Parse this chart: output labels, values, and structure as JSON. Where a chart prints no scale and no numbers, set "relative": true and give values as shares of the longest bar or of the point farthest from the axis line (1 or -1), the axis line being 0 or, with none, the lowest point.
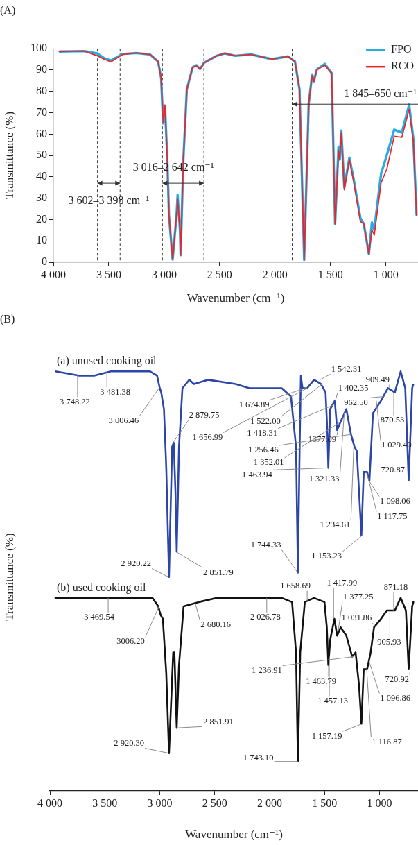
{
  "chart_data": [
    {
      "type": "line",
      "title": "(A)",
      "xlabel": "Wavenumber (cm⁻¹)",
      "ylabel": "Transmittance (%)",
      "xlim": [
        4000,
        710
      ],
      "xticks": [
        {
          "value": 4000,
          "label": "4 000"
        },
        {
          "value": 3500,
          "label": "3 500"
        },
        {
          "value": 3000,
          "label": "3 000"
        },
        {
          "value": 2500,
          "label": "2 500"
        },
        {
          "value": 2000,
          "label": "2 000"
        },
        {
          "value": 1500,
          "label": "1 500"
        },
        {
          "value": 1000,
          "label": "1 000"
        }
      ],
      "ylim": [
        0,
        100
      ],
      "yticks": [
        0,
        10,
        20,
        30,
        40,
        50,
        60,
        70,
        80,
        90,
        100
      ],
      "grid": false,
      "legend": "top right",
      "x": [
        3948,
        3720,
        3605,
        3543,
        3481,
        3377,
        3252,
        3128,
        3055,
        3028,
        3009,
        2993,
        2972,
        2957,
        2924,
        2889,
        2879,
        2858,
        2852,
        2827,
        2796,
        2744,
        2709,
        2677,
        2640,
        2525,
        2453,
        2359,
        2215,
        2028,
        1883,
        1820,
        1779,
        1737,
        1696,
        1665,
        1650,
        1623,
        1551,
        1489,
        1458,
        1427,
        1416,
        1402,
        1375,
        1329,
        1292,
        1230,
        1199,
        1153,
        1126,
        1105,
        1043,
        991,
        925,
        856,
        790,
        752,
        723
      ],
      "series": [
        {
          "name": "FPO",
          "color": "#29abe2",
          "values": [
            98.7,
            98.9,
            97.8,
            95.6,
            94.5,
            97.5,
            98.0,
            97.3,
            94.0,
            86.3,
            65.0,
            73.4,
            48.1,
            21.9,
            1.3,
            21.9,
            31.5,
            15.3,
            3.3,
            48.1,
            80.9,
            91.3,
            92.3,
            90.5,
            93.4,
            96.7,
            97.8,
            96.7,
            97.3,
            95.1,
            96.4,
            94.0,
            80.9,
            1.1,
            74.3,
            88.0,
            84.7,
            90.2,
            92.9,
            88.5,
            18.0,
            54.1,
            48.1,
            61.7,
            35.0,
            49.0,
            39.3,
            20.8,
            18.0,
            3.8,
            18.6,
            15.3,
            41.5,
            50.3,
            62.1,
            60.7,
            73.8,
            57.9,
            21.9
          ]
        },
        {
          "name": "RCO",
          "color": "#e8262b",
          "values": [
            98.7,
            98.9,
            96.7,
            95.1,
            93.8,
            97.3,
            98.0,
            97.3,
            94.0,
            86.3,
            65.6,
            73.2,
            48.1,
            21.9,
            1.3,
            21.9,
            29.5,
            15.3,
            3.3,
            48.1,
            80.9,
            91.3,
            92.0,
            90.5,
            93.4,
            96.7,
            97.8,
            96.7,
            97.3,
            95.1,
            96.4,
            94.0,
            80.9,
            1.1,
            74.3,
            87.4,
            84.7,
            90.2,
            92.3,
            88.5,
            18.0,
            52.5,
            48.1,
            60.7,
            33.9,
            48.1,
            38.3,
            19.1,
            18.0,
            3.8,
            15.3,
            12.6,
            37.2,
            43.7,
            59.0,
            58.5,
            71.6,
            56.8,
            21.9
          ]
        }
      ],
      "ref_lines": [
        {
          "axis": "x",
          "value": 3602,
          "color": "#333333",
          "line_style": "dashed"
        },
        {
          "axis": "x",
          "value": 3398,
          "color": "#333333",
          "line_style": "dashed"
        },
        {
          "axis": "x",
          "value": 3016,
          "color": "#333333",
          "line_style": "dashed"
        },
        {
          "axis": "x",
          "value": 2642,
          "color": "#333333",
          "line_style": "dashed"
        },
        {
          "axis": "x",
          "value": 1845,
          "color": "#333333",
          "line_style": "dashed"
        }
      ],
      "annotations": [
        "3 602–3 398 cm⁻¹",
        "3 016–2 642 cm⁻¹",
        {
          "text": "1 845–650 cm⁻¹",
          "x": 1845,
          "y": 74
        }
      ]
    },
    {
      "type": "line",
      "title": "(B)",
      "xlabel": "Wavenumber (cm⁻¹)",
      "ylabel": "Transmittance (%)",
      "relative": true,
      "tick_labels": "x",
      "xlim": [
        4000,
        650
      ],
      "xticks": [
        {
          "value": 4000,
          "label": "4 000"
        },
        {
          "value": 3500,
          "label": "3 500"
        },
        {
          "value": 3000,
          "label": "3 000"
        },
        {
          "value": 2500,
          "label": "2 500"
        },
        {
          "value": 2000,
          "label": "2 000"
        },
        {
          "value": 1500,
          "label": "1 500"
        },
        {
          "value": 1000,
          "label": "1 000"
        }
      ],
      "grid": false,
      "legend": false,
      "series": [
        {
          "name": "(a) unused cooking oil",
          "color": "#2b45a8",
          "x": [
            3950,
            3739,
            3592,
            3445,
            3235,
            3088,
            3025,
            3000,
            2987,
            2962,
            2941,
            2916,
            2888,
            2873,
            2857,
            2846,
            2825,
            2794,
            2731,
            2689,
            2562,
            2310,
            2184,
            1890,
            1806,
            1760,
            1743,
            1727,
            1716,
            1701,
            1659,
            1596,
            1533,
            1491,
            1474,
            1466,
            1449,
            1407,
            1386,
            1354,
            1302,
            1260,
            1228,
            1207,
            1165,
            1144,
            1113,
            1092,
            1060,
            987,
            924,
            861,
            808,
            766,
            735,
            703,
            692
          ],
          "values": [
            1.0,
            0.99,
            0.99,
            1.0,
            1.0,
            1.0,
            0.99,
            0.96,
            0.95,
            0.91,
            0.77,
            0.51,
            0.82,
            0.83,
            0.71,
            0.57,
            0.82,
            0.96,
            0.98,
            0.97,
            0.98,
            0.97,
            0.96,
            0.96,
            0.94,
            0.82,
            0.52,
            0.82,
            0.99,
            0.96,
            0.96,
            0.98,
            0.97,
            0.95,
            0.85,
            0.77,
            0.91,
            0.93,
            0.86,
            0.88,
            0.91,
            0.85,
            0.82,
            0.81,
            0.61,
            0.76,
            0.76,
            0.74,
            0.9,
            0.93,
            0.96,
            0.95,
            1.0,
            0.96,
            0.74,
            0.96,
            0.97
          ]
        },
        {
          "name": "(b) used cooking oil",
          "color": "#111111",
          "x": [
            3950,
            3466,
            3067,
            3014,
            2993,
            2972,
            2941,
            2916,
            2878,
            2867,
            2846,
            2825,
            2783,
            2646,
            2478,
            2184,
            1890,
            1796,
            1760,
            1743,
            1722,
            1680,
            1596,
            1501,
            1480,
            1466,
            1449,
            1411,
            1386,
            1354,
            1302,
            1249,
            1218,
            1186,
            1165,
            1144,
            1113,
            1081,
            1050,
            987,
            934,
            861,
            808,
            760,
            735,
            703,
            692
          ],
          "values": [
            0.46,
            0.46,
            0.46,
            0.44,
            0.42,
            0.41,
            0.28,
            0.09,
            0.33,
            0.33,
            0.15,
            0.3,
            0.44,
            0.45,
            0.46,
            0.46,
            0.46,
            0.45,
            0.33,
            0.07,
            0.33,
            0.45,
            0.46,
            0.45,
            0.39,
            0.3,
            0.36,
            0.41,
            0.37,
            0.39,
            0.37,
            0.32,
            0.33,
            0.25,
            0.16,
            0.29,
            0.29,
            0.33,
            0.39,
            0.41,
            0.43,
            0.43,
            0.46,
            0.43,
            0.29,
            0.44,
            0.45
          ]
        }
      ],
      "annotations": [
        {
          "text": "3 748.22",
          "x": 3748.22,
          "y": 0.99
        },
        {
          "text": "3 481.38",
          "x": 3481.38,
          "y": 1.0
        },
        {
          "text": "3 006.46",
          "x": 3006.46,
          "y": 0.96
        },
        {
          "text": "2 879.75",
          "x": 2879.75,
          "y": 0.83
        },
        {
          "text": "2 920.22",
          "x": 2920.22,
          "y": 0.51
        },
        {
          "text": "2 851.79",
          "x": 2851.79,
          "y": 0.57
        },
        {
          "text": "1 674.89",
          "x": 1674.89,
          "y": 0.96
        },
        {
          "text": "1 656.99",
          "x": 1656.99,
          "y": 0.96
        },
        {
          "text": "1 542.31",
          "x": 1542.31,
          "y": 0.98
        },
        {
          "text": "1 522.00",
          "x": 1522.0,
          "y": 0.97
        },
        {
          "text": "1 418.31",
          "x": 1418.31,
          "y": 0.92
        },
        {
          "text": "1 402.35",
          "x": 1402.35,
          "y": 0.93
        },
        {
          "text": "1377.09",
          "x": 1377.09,
          "y": 0.86
        },
        {
          "text": "1 256.46",
          "x": 1256.46,
          "y": 0.85
        },
        {
          "text": "1 352.01",
          "x": 1352.01,
          "y": 0.88
        },
        {
          "text": "1 463.94",
          "x": 1463.94,
          "y": 0.77
        },
        {
          "text": "1 321.33",
          "x": 1321.33,
          "y": 0.9
        },
        {
          "text": "1 234.61",
          "x": 1234.61,
          "y": 0.82
        },
        {
          "text": "1 153.23",
          "x": 1153.23,
          "y": 0.61
        },
        {
          "text": "1 744.33",
          "x": 1744.33,
          "y": 0.52
        },
        {
          "text": "909.49",
          "x": 909.49,
          "y": 0.96
        },
        {
          "text": "962.50",
          "x": 962.5,
          "y": 0.94
        },
        {
          "text": "870.53",
          "x": 870.53,
          "y": 0.95
        },
        {
          "text": "1 029.40",
          "x": 1029.4,
          "y": 0.93
        },
        {
          "text": "720.87",
          "x": 720.87,
          "y": 0.77
        },
        {
          "text": "1 098.06",
          "x": 1098.06,
          "y": 0.74
        },
        {
          "text": "1 117.75",
          "x": 1117.75,
          "y": 0.76
        },
        {
          "text": "3 469.54",
          "x": 3469.54,
          "y": 0.46
        },
        {
          "text": "3006.20",
          "x": 3006.2,
          "y": 0.44
        },
        {
          "text": "2 680.16",
          "x": 2680.16,
          "y": 0.45
        },
        {
          "text": "2 851.91",
          "x": 2851.91,
          "y": 0.15
        },
        {
          "text": "2 920.30",
          "x": 2920.3,
          "y": 0.09
        },
        {
          "text": "2 026.78",
          "x": 2026.78,
          "y": 0.46
        },
        {
          "text": "1 658.69",
          "x": 1658.69,
          "y": 0.45
        },
        {
          "text": "1 417.99",
          "x": 1417.99,
          "y": 0.41
        },
        {
          "text": "1 377.25",
          "x": 1377.25,
          "y": 0.38
        },
        {
          "text": "871.18",
          "x": 871.18,
          "y": 0.43
        },
        {
          "text": "1 031.86",
          "x": 1031.86,
          "y": 0.39
        },
        {
          "text": "905.93",
          "x": 905.93,
          "y": 0.43
        },
        {
          "text": "1 236.91",
          "x": 1236.91,
          "y": 0.32
        },
        {
          "text": "1 463.79",
          "x": 1463.79,
          "y": 0.3
        },
        {
          "text": "1 457.13",
          "x": 1457.13,
          "y": 0.32
        },
        {
          "text": "720.92",
          "x": 720.92,
          "y": 0.29
        },
        {
          "text": "1 096.86",
          "x": 1096.86,
          "y": 0.31
        },
        {
          "text": "1 157.19",
          "x": 1157.19,
          "y": 0.16
        },
        {
          "text": "1 116.87",
          "x": 1116.87,
          "y": 0.29
        },
        {
          "text": "1 743.10",
          "x": 1743.1,
          "y": 0.07
        }
      ]
    }
  ]
}
